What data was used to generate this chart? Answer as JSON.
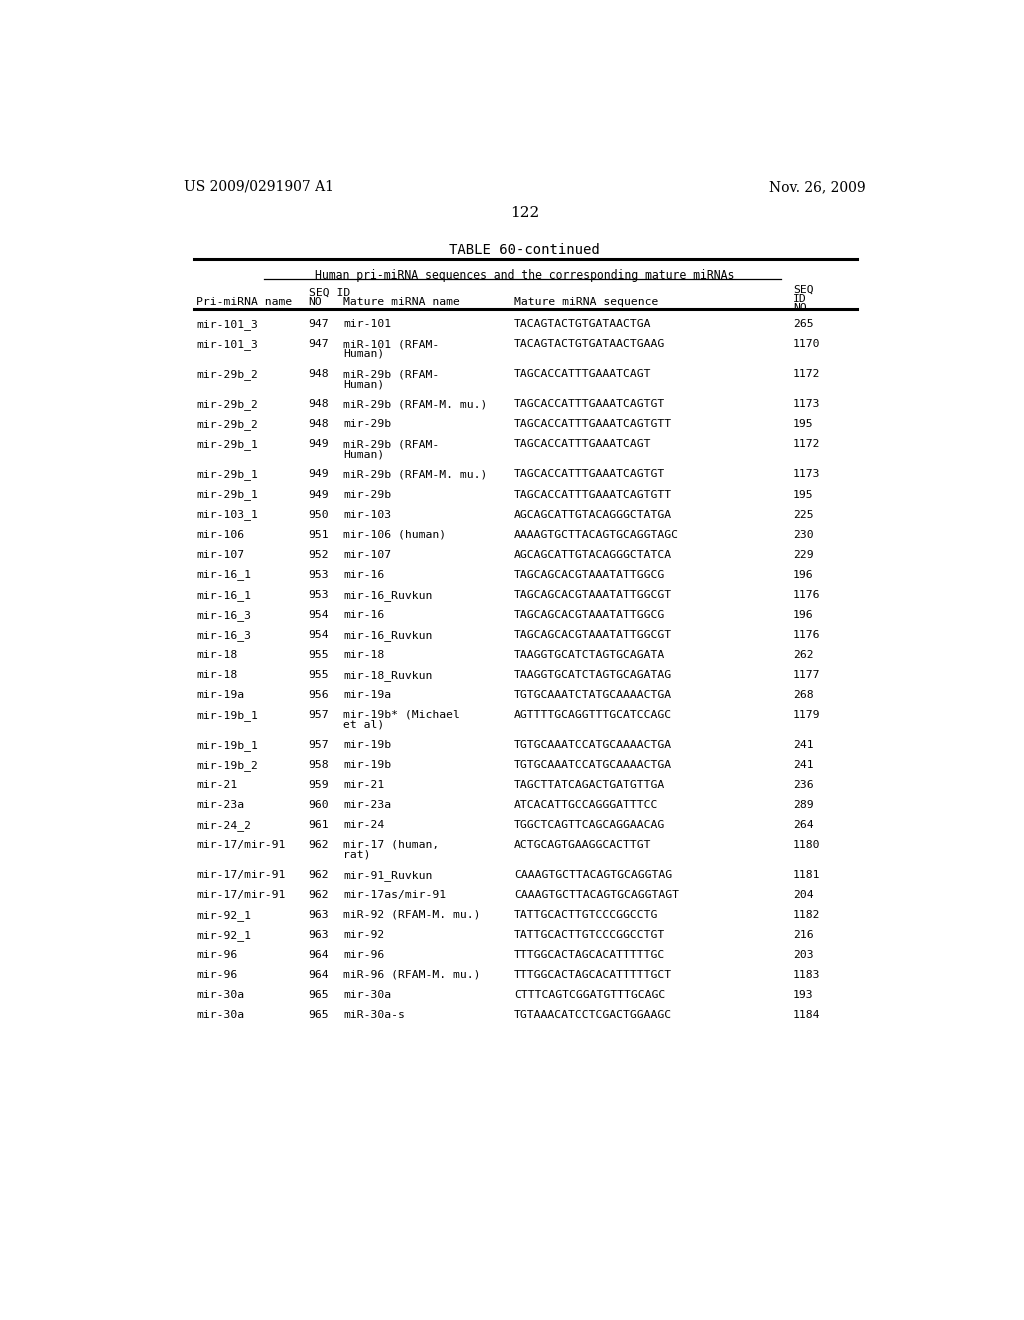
{
  "header_left": "US 2009/0291907 A1",
  "header_right": "Nov. 26, 2009",
  "page_number": "122",
  "table_title": "TABLE 60-continued",
  "subtitle": "Human pri-miRNA sequences and the corresponding mature miRNAs",
  "rows": [
    [
      "mir-101_3",
      "947",
      "mir-101",
      "TACAGTACTGTGATAACTGA",
      "265",
      false
    ],
    [
      "mir-101_3",
      "947",
      "miR-101 (RFAM-\nHuman)",
      "TACAGTACTGTGATAACTGAAG",
      "1170",
      true
    ],
    [
      "mir-29b_2",
      "948",
      "miR-29b (RFAM-\nHuman)",
      "TAGCACCATTTGAAATCAGT",
      "1172",
      true
    ],
    [
      "mir-29b_2",
      "948",
      "miR-29b (RFAM-M. mu.)",
      "TAGCACCATTTGAAATCAGTGT",
      "1173",
      false
    ],
    [
      "mir-29b_2",
      "948",
      "mir-29b",
      "TAGCACCATTTGAAATCAGTGTT",
      "195",
      false
    ],
    [
      "mir-29b_1",
      "949",
      "miR-29b (RFAM-\nHuman)",
      "TAGCACCATTTGAAATCAGT",
      "1172",
      true
    ],
    [
      "mir-29b_1",
      "949",
      "miR-29b (RFAM-M. mu.)",
      "TAGCACCATTTGAAATCAGTGT",
      "1173",
      false
    ],
    [
      "mir-29b_1",
      "949",
      "mir-29b",
      "TAGCACCATTTGAAATCAGTGTT",
      "195",
      false
    ],
    [
      "mir-103_1",
      "950",
      "mir-103",
      "AGCAGCATTGTACAGGGCTATGA",
      "225",
      false
    ],
    [
      "mir-106",
      "951",
      "mir-106 (human)",
      "AAAAGTGCTTACAGTGCAGGTAGC",
      "230",
      false
    ],
    [
      "mir-107",
      "952",
      "mir-107",
      "AGCAGCATTGTACAGGGCTATCA",
      "229",
      false
    ],
    [
      "mir-16_1",
      "953",
      "mir-16",
      "TAGCAGCACGTAAATATTGGCG",
      "196",
      false
    ],
    [
      "mir-16_1",
      "953",
      "mir-16_Ruvkun",
      "TAGCAGCACGTAAATATTGGCGT",
      "1176",
      false
    ],
    [
      "mir-16_3",
      "954",
      "mir-16",
      "TAGCAGCACGTAAATATTGGCG",
      "196",
      false
    ],
    [
      "mir-16_3",
      "954",
      "mir-16_Ruvkun",
      "TAGCAGCACGTAAATATTGGCGT",
      "1176",
      false
    ],
    [
      "mir-18",
      "955",
      "mir-18",
      "TAAGGTGCATCTAGTGCAGATA",
      "262",
      false
    ],
    [
      "mir-18",
      "955",
      "mir-18_Ruvkun",
      "TAAGGTGCATCTAGTGCAGATAG",
      "1177",
      false
    ],
    [
      "mir-19a",
      "956",
      "mir-19a",
      "TGTGCAAATCTATGCAAAACTGA",
      "268",
      false
    ],
    [
      "mir-19b_1",
      "957",
      "mir-19b* (Michael\net al)",
      "AGTTTTGCAGGTTTGCATCCAGC",
      "1179",
      true
    ],
    [
      "mir-19b_1",
      "957",
      "mir-19b",
      "TGTGCAAATCCATGCAAAACTGA",
      "241",
      false
    ],
    [
      "mir-19b_2",
      "958",
      "mir-19b",
      "TGTGCAAATCCATGCAAAACTGA",
      "241",
      false
    ],
    [
      "mir-21",
      "959",
      "mir-21",
      "TAGCTTATCAGACTGATGTTGA",
      "236",
      false
    ],
    [
      "mir-23a",
      "960",
      "mir-23a",
      "ATCACATTGCCAGGGATTTCC",
      "289",
      false
    ],
    [
      "mir-24_2",
      "961",
      "mir-24",
      "TGGCTCAGTTCAGCAGGAACAG",
      "264",
      false
    ],
    [
      "mir-17/mir-91",
      "962",
      "mir-17 (human,\nrat)",
      "ACTGCAGTGAAGGCACTTGT",
      "1180",
      true
    ],
    [
      "mir-17/mir-91",
      "962",
      "mir-91_Ruvkun",
      "CAAAGTGCTTACAGTGCAGGTAG",
      "1181",
      false
    ],
    [
      "mir-17/mir-91",
      "962",
      "mir-17as/mir-91",
      "CAAAGTGCTTACAGTGCAGGTAGT",
      "204",
      false
    ],
    [
      "mir-92_1",
      "963",
      "miR-92 (RFAM-M. mu.)",
      "TATTGCACTTGTCCCGGCCTG",
      "1182",
      false
    ],
    [
      "mir-92_1",
      "963",
      "mir-92",
      "TATTGCACTTGTCCCGGCCTGT",
      "216",
      false
    ],
    [
      "mir-96",
      "964",
      "mir-96",
      "TTTGGCACTAGCACATTTTTGC",
      "203",
      false
    ],
    [
      "mir-96",
      "964",
      "miR-96 (RFAM-M. mu.)",
      "TTTGGCACTAGCACATTTTTGCT",
      "1183",
      false
    ],
    [
      "mir-30a",
      "965",
      "mir-30a",
      "CTTTCAGTCGGATGTTTGCAGC",
      "193",
      false
    ],
    [
      "mir-30a",
      "965",
      "miR-30a-s",
      "TGTAAACATCCTCGACTGGAAGC",
      "1184",
      false
    ]
  ]
}
